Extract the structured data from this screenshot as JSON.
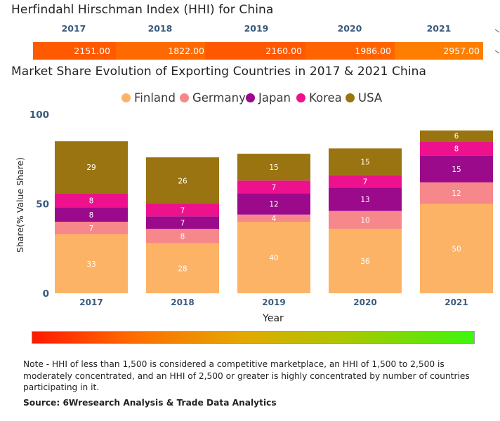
{
  "hhi": {
    "title": "Herfindahl Hirschman Index (HHI) for China",
    "years": [
      "2017",
      "2018",
      "2019",
      "2020",
      "2021"
    ],
    "values": [
      "2151.00",
      "1822.00",
      "2160.00",
      "1986.00",
      "2957.00"
    ],
    "colors": [
      "#ff5a00",
      "#ff6a00",
      "#ff5800",
      "#ff6400",
      "#ff7e00"
    ]
  },
  "chart_data": {
    "type": "bar",
    "stacked": true,
    "title": "Market Share Evolution of Exporting Countries in 2017 & 2021 China",
    "categories": [
      "2017",
      "2018",
      "2019",
      "2020",
      "2021"
    ],
    "series": [
      {
        "name": "Finland",
        "color": "#fdb365",
        "values": [
          33,
          28,
          40,
          36,
          50
        ]
      },
      {
        "name": "Germany",
        "color": "#f6878a",
        "values": [
          7,
          8,
          4,
          10,
          12
        ]
      },
      {
        "name": "Japan",
        "color": "#9a0a8a",
        "values": [
          8,
          7,
          12,
          13,
          15
        ]
      },
      {
        "name": "Korea",
        "color": "#ee118e",
        "values": [
          8,
          7,
          7,
          7,
          8
        ]
      },
      {
        "name": "USA",
        "color": "#9a7410",
        "values": [
          29,
          26,
          15,
          15,
          6
        ]
      }
    ],
    "xlabel": "Year",
    "ylabel": "Share(% Value Share)",
    "ylim": [
      0,
      100
    ],
    "yticks": [
      "0",
      "50",
      "100"
    ],
    "legend_position": "top"
  },
  "note": "Note - HHI of less than 1,500 is considered a competitive marketplace, an HHI of 1,500 to 2,500 is moderately concentrated, and an HHI of 2,500 or greater is highly concentrated by number of countries participating in it.",
  "source": "Source: 6Wresearch Analysis & Trade Data Analytics"
}
